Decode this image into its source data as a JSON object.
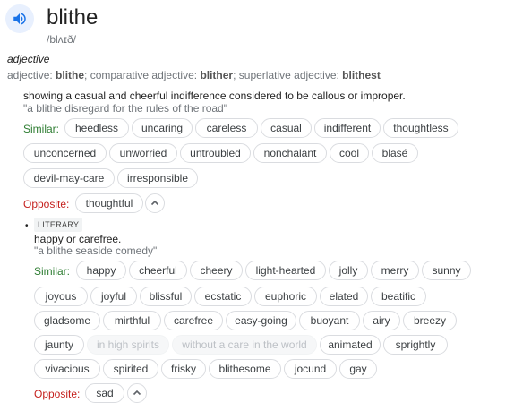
{
  "entry": {
    "word": "blithe",
    "phonetic": "/blʌɪð/",
    "part_of_speech": "adjective",
    "forms": {
      "prefix": "adjective: ",
      "base": "blithe",
      "sep1": "; comparative adjective: ",
      "comparative": "blither",
      "sep2": "; superlative adjective: ",
      "superlative": "blithest"
    }
  },
  "sense1": {
    "definition": "showing a casual and cheerful indifference considered to be callous or improper.",
    "example": "\"a blithe disregard for the rules of the road\"",
    "similar_label": "Similar:",
    "similar": [
      "heedless",
      "uncaring",
      "careless",
      "casual",
      "indifferent",
      "thoughtless",
      "unconcerned",
      "unworried",
      "untroubled",
      "nonchalant",
      "cool",
      "blasé",
      "devil-may-care",
      "irresponsible"
    ],
    "opposite_label": "Opposite:",
    "opposite": [
      "thoughtful"
    ]
  },
  "sense2": {
    "bullet": "•",
    "register": "LITERARY",
    "definition": "happy or carefree.",
    "example": "\"a blithe seaside comedy\"",
    "similar_label": "Similar:",
    "similar": [
      "happy",
      "cheerful",
      "cheery",
      "light-hearted",
      "jolly",
      "merry",
      "sunny",
      "joyous",
      "joyful",
      "blissful",
      "ecstatic",
      "euphoric",
      "elated",
      "beatific",
      "gladsome",
      "mirthful",
      "carefree",
      "easy-going",
      "buoyant",
      "airy",
      "breezy",
      "jaunty",
      "in high spirits",
      "without a care in the world",
      "animated",
      "sprightly",
      "vivacious",
      "spirited",
      "frisky",
      "blithesome",
      "jocund",
      "gay"
    ],
    "opposite_label": "Opposite:",
    "opposite": [
      "sad"
    ]
  },
  "icons": {
    "speaker": "speaker-icon",
    "expand": "chevron-up-icon"
  },
  "colors": {
    "similar_label": "#2e7d32",
    "opposite_label": "#c5221f",
    "speaker_bg": "#e8f0fe",
    "speaker_icon": "#1a73e8"
  }
}
